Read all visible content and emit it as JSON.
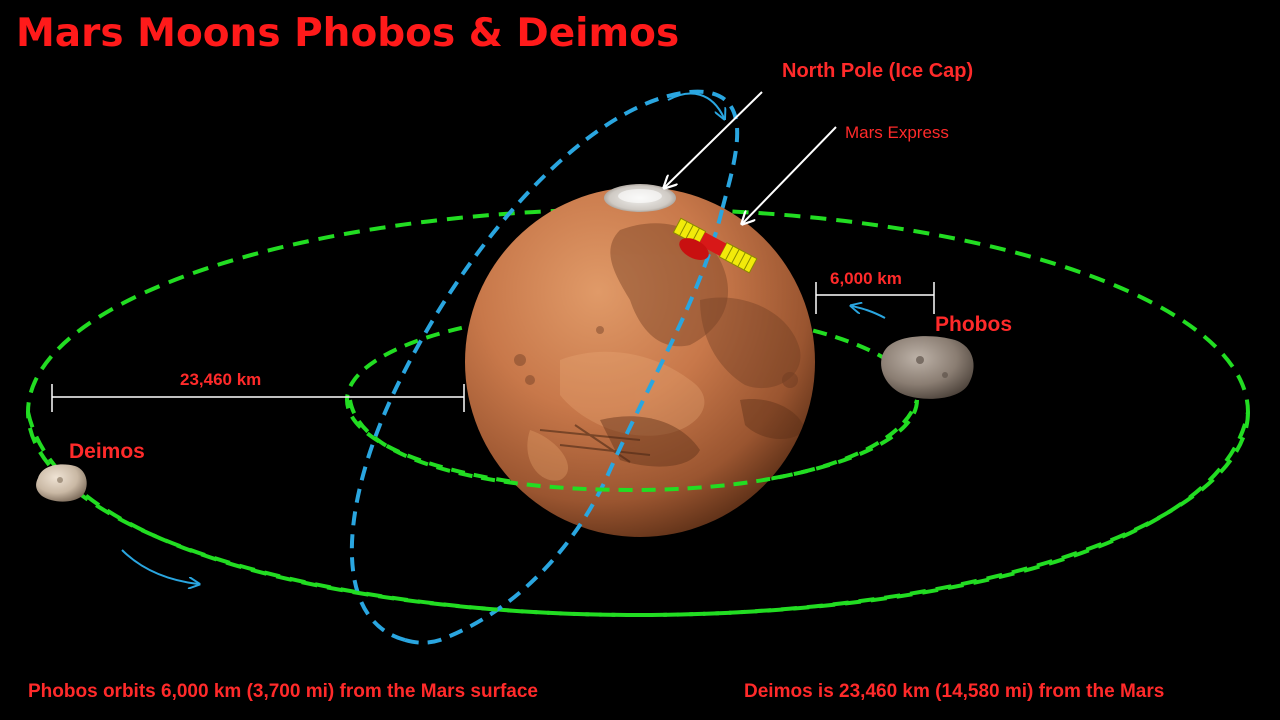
{
  "title": "Mars Moons Phobos & Deimos",
  "labels": {
    "north_pole": "North Pole (Ice Cap)",
    "mars_express": "Mars Express",
    "phobos": "Phobos",
    "deimos": "Deimos",
    "phobos_distance": "6,000 km",
    "deimos_distance": "23,460 km"
  },
  "footer": {
    "phobos_note": "Phobos orbits 6,000 km (3,700 mi) from the Mars surface",
    "deimos_note": "Deimos is 23,460 km (14,580 mi) from the Mars"
  },
  "colors": {
    "background": "#000000",
    "label_red": "#ff1a1a",
    "phobos_orbit": "#22dd22",
    "deimos_orbit": "#22dd22",
    "polar_orbit": "#2aa6e0",
    "mars": "#c0703f",
    "satellite_panels": "#f2ea0a",
    "satellite_dish": "#e01010",
    "pointer_lines": "#ffffff"
  },
  "icons": {
    "planet": "mars-planet-icon",
    "moon_phobos": "phobos-moon-icon",
    "moon_deimos": "deimos-moon-icon",
    "satellite": "satellite-icon"
  }
}
